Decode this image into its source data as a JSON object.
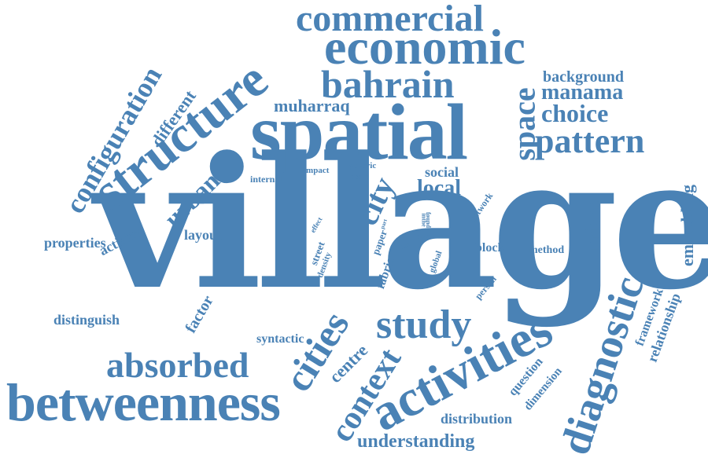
{
  "colors": {
    "word": "#4a82b5",
    "background": "#ffffff"
  },
  "words": {
    "village": "village",
    "spatial": "spatial",
    "economic": "economic",
    "commercial": "commercial",
    "structure": "structure",
    "bahrain": "bahrain",
    "betweenness": "betweenness",
    "activities": "activities",
    "diagnostic": "diagnostic",
    "study": "study",
    "cities": "cities",
    "absorbed": "absorbed",
    "context": "context",
    "pattern": "pattern",
    "space": "space",
    "configuration": "configuration",
    "urban": "urban",
    "city": "city",
    "choice": "choice",
    "manama": "manama",
    "background": "background",
    "muharraq": "muharraq",
    "different": "different",
    "local": "local",
    "social": "social",
    "micro": "micro",
    "embedding": "embedding",
    "relationship": "relationship",
    "framework": "framework",
    "method": "method",
    "block": "block",
    "understanding": "understanding",
    "distribution": "distribution",
    "dimension": "dimension",
    "question": "question",
    "centre": "centre",
    "syntactic": "syntactic",
    "distinguish": "distinguish",
    "factor": "factor",
    "properties": "properties",
    "activity": "activity",
    "layout": "layout",
    "internal": "internal",
    "impact": "impact",
    "generic": "generic",
    "scale": "scale",
    "network": "network",
    "effect": "effect",
    "street": "street",
    "density": "density",
    "paper": "paper",
    "fabric": "fabric",
    "part": "part",
    "inthe": "inthe",
    "found": "found",
    "size": "size",
    "face": "face",
    "global": "global",
    "person": "person"
  }
}
